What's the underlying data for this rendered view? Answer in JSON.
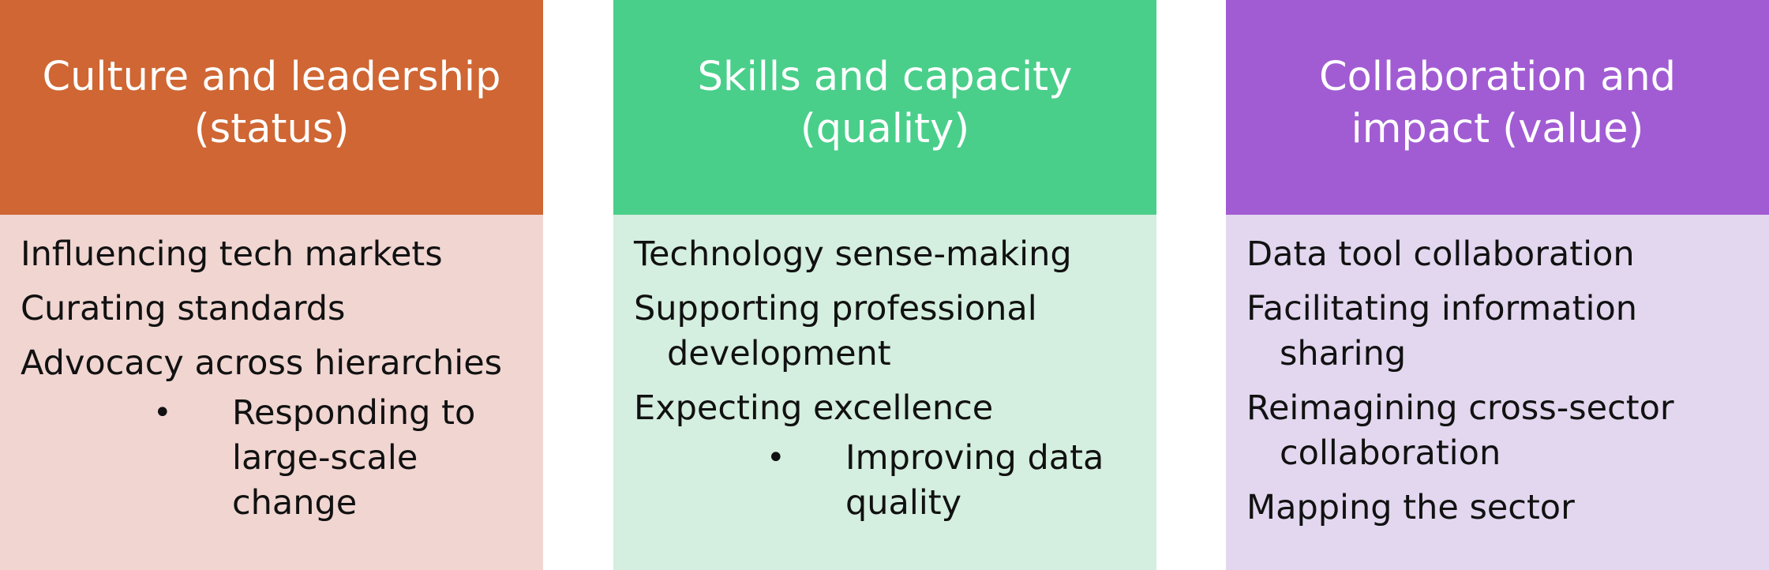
{
  "columns": [
    {
      "header": "Culture and leadership (status)",
      "header_color": "#CF6633",
      "body_color": "#F0D5D1",
      "items": [
        "Influencing tech markets",
        "Curating standards",
        "Advocacy across hierarchies"
      ],
      "sub_items": [
        "Responding to large-scale change"
      ]
    },
    {
      "header": "Skills and capacity (quality)",
      "header_color": "#49CF8A",
      "body_color": "#D4EEDF",
      "items": [
        "Technology sense-making",
        "Supporting professional development",
        "Expecting excellence"
      ],
      "sub_items": [
        "Improving data quality"
      ]
    },
    {
      "header": "Collaboration and impact (value)",
      "header_color": "#A15CD3",
      "body_color": "#E2D7EF",
      "items": [
        "Data tool collaboration",
        "Facilitating information sharing",
        "Reimagining cross-sector collaboration",
        "Mapping the sector"
      ],
      "sub_items": []
    }
  ],
  "bullet_glyph": "•"
}
